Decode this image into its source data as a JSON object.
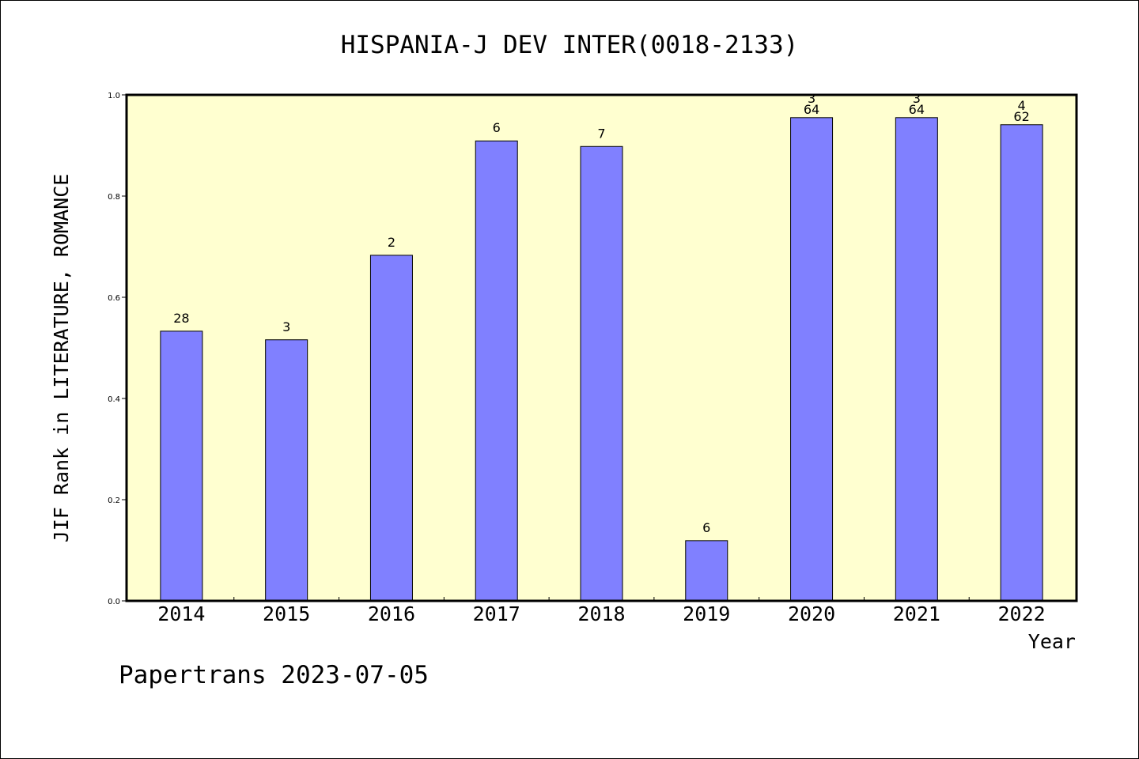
{
  "chart_data": {
    "type": "bar",
    "title": "HISPANIA-J DEV INTER(0018-2133)",
    "xlabel": "Year",
    "ylabel": "JIF Rank in LITERATURE, ROMANCE",
    "footer": "Papertrans 2023-07-05",
    "categories": [
      "2014",
      "2015",
      "2016",
      "2017",
      "2018",
      "2019",
      "2020",
      "2021",
      "2022"
    ],
    "values": [
      0.533,
      0.516,
      0.683,
      0.909,
      0.898,
      0.119,
      0.955,
      0.955,
      0.941
    ],
    "bar_labels": [
      [
        "28"
      ],
      [
        "3"
      ],
      [
        "2"
      ],
      [
        "6"
      ],
      [
        "7"
      ],
      [
        "6"
      ],
      [
        "3",
        "64"
      ],
      [
        "3",
        "64"
      ],
      [
        "4",
        "62"
      ]
    ],
    "ylim": [
      0,
      1.0
    ],
    "yticks": [
      "0.0",
      "0.2",
      "0.4",
      "0.6",
      "0.8",
      "1.0"
    ],
    "grid": false,
    "legend": "none",
    "colors": {
      "bar": "#8080ff",
      "plot_background": "#ffffd0",
      "axis": "#000000"
    }
  }
}
